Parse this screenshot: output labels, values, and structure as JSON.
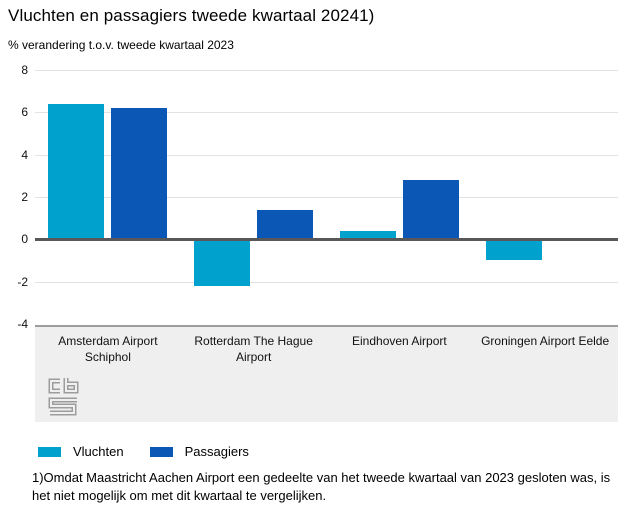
{
  "header": {
    "title": "Vluchten en passagiers tweede kwartaal 20241)",
    "subtitle": "% verandering t.o.v. tweede kwartaal 2023"
  },
  "chart_data": {
    "type": "bar",
    "title": "Vluchten en passagiers tweede kwartaal 20241)",
    "subtitle": "% verandering t.o.v. tweede kwartaal 2023",
    "categories": [
      "Amsterdam Airport Schiphol",
      "Rotterdam The Hague Airport",
      "Eindhoven Airport",
      "Groningen Airport Eelde"
    ],
    "series": [
      {
        "name": "Vluchten",
        "color": "#00a1cd",
        "values": [
          6.4,
          -2.2,
          0.4,
          -1.0
        ]
      },
      {
        "name": "Passagiers",
        "color": "#0b57b5",
        "values": [
          6.2,
          1.4,
          2.8,
          -0.1
        ]
      }
    ],
    "xlabel": "",
    "ylabel": "",
    "ylim": [
      -4,
      8
    ],
    "ytick_step": 2,
    "grid": true,
    "legend_position": "bottom",
    "colors": {
      "gridline": "#e2e2e2",
      "zero_line": "#58585a",
      "category_band": "#efefef",
      "band_border": "#9e9e9e"
    }
  },
  "legend": {
    "items": [
      {
        "label": "Vluchten",
        "color": "#00a1cd"
      },
      {
        "label": "Passagiers",
        "color": "#0b57b5"
      }
    ]
  },
  "footnote": {
    "text": "1)Omdat Maastricht Aachen Airport een gedeelte van het tweede kwartaal van 2023 gesloten was, is het niet mogelijk om met dit kwartaal te vergelijken."
  },
  "logo": {
    "name": "cbs-logo"
  }
}
